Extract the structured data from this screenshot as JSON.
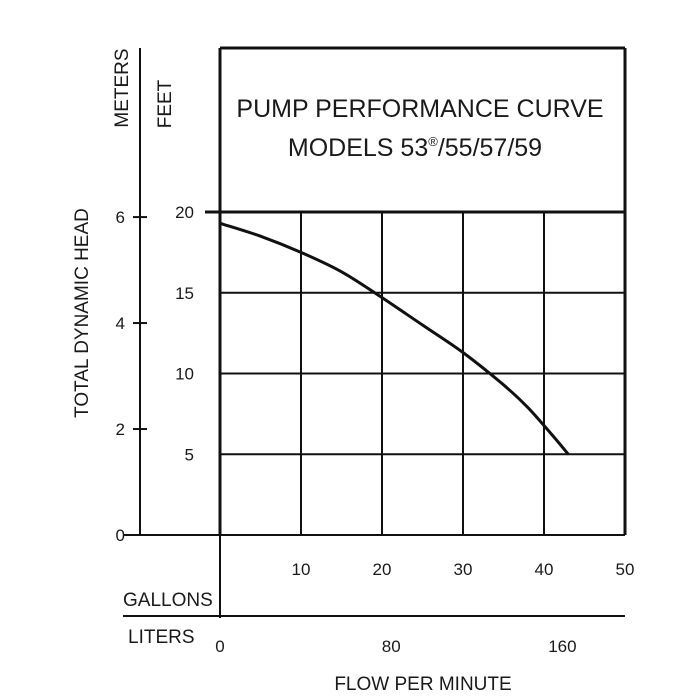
{
  "chart_data": {
    "type": "line",
    "title_line1": "PUMP PERFORMANCE CURVE",
    "title_line2_prefix": "MODELS 53",
    "title_line2_mark": "®",
    "title_line2_suffix": "/55/57/59",
    "ylabel": "TOTAL DYNAMIC HEAD",
    "y_units_left": "METERS",
    "y_units_right": "FEET",
    "xlabel": "FLOW PER MINUTE",
    "x_units_top": "GALLONS",
    "x_units_bottom": "LITERS",
    "feet_ticks": [
      "20",
      "15",
      "10",
      "5"
    ],
    "meters_ticks": [
      "6",
      "4",
      "2",
      "0"
    ],
    "gallons_ticks": [
      "10",
      "20",
      "30",
      "40",
      "50"
    ],
    "liters_ticks": [
      "0",
      "80",
      "160"
    ],
    "xlim": [
      0,
      50
    ],
    "ylim": [
      0,
      20
    ],
    "grid": true,
    "series": [
      {
        "x": [
          0,
          5,
          10,
          15,
          20,
          25,
          30,
          35,
          38,
          41,
          43
        ],
        "y": [
          19.3,
          18.5,
          17.5,
          16.3,
          14.7,
          13.0,
          11.3,
          9.3,
          7.9,
          6.2,
          5.0
        ]
      }
    ]
  }
}
